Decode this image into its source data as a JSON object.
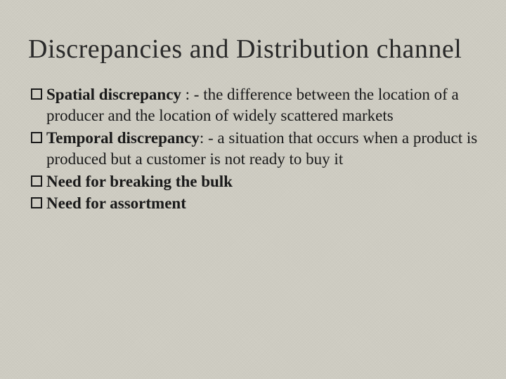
{
  "colors": {
    "background": "#d0cec4",
    "text": "#1a1a1a",
    "title": "#2a2a2a",
    "bullet_border": "#1a1a1a"
  },
  "typography": {
    "title_fontsize": 38,
    "body_fontsize": 23,
    "font_family": "Georgia, serif",
    "term_weight": 700
  },
  "title": "Discrepancies and Distribution channel",
  "bullets": [
    {
      "term": "Spatial discrepancy",
      "definition": " : - the difference between the location of a producer and the location of widely scattered markets"
    },
    {
      "term": "Temporal discrepancy",
      "definition": ": - a situation that occurs when a product is produced but a customer is not ready to buy it"
    },
    {
      "term": "Need for breaking the bulk",
      "definition": ""
    },
    {
      "term": "Need for assortment",
      "definition": ""
    }
  ]
}
